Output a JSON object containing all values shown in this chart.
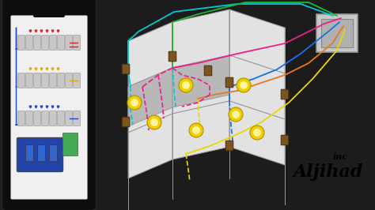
{
  "bg_color": "#1c1c1c",
  "phone_body_color": "#0d0d0d",
  "phone_screen_color": "#f0f0f0",
  "wall_top_color": "#e2e2e2",
  "wall_front_color": "#d0d0d0",
  "wall_side_color": "#b8b8b8",
  "wall_edge_color": "#999999",
  "box_color": "#c8c8c8",
  "box_inner_color": "#b0b0b0",
  "light_outer": "#f0d000",
  "light_inner": "#fff5a0",
  "switch_color": "#7a5520",
  "wire_cyan": "#00c8d4",
  "wire_yellow": "#e8d800",
  "wire_pink": "#e8208a",
  "wire_blue": "#1870e8",
  "wire_orange": "#e87820",
  "wire_green": "#20b830",
  "watermark1": "inc",
  "watermark2": "Aljihad",
  "wm_color": "#000000"
}
